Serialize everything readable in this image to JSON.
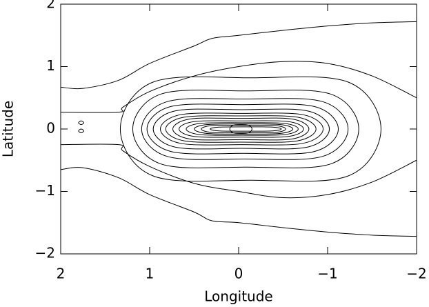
{
  "chart_data": {
    "type": "contour",
    "x_label": "Longitude",
    "y_label": "Latitude",
    "xlim": [
      2,
      -2
    ],
    "ylim": [
      -2,
      2
    ],
    "xticks": [
      2,
      1,
      0,
      {
        "value": -1,
        "label": "−1"
      },
      {
        "value": -2,
        "label": "−2"
      }
    ],
    "yticks": [
      {
        "value": -2,
        "label": "−2"
      },
      {
        "value": -1,
        "label": "−1"
      },
      0,
      1,
      2
    ],
    "color": "#000000",
    "open_contours": [
      {
        "x": [
          2,
          1.75,
          1.35,
          1,
          0.5,
          0.3,
          0,
          -0.5,
          -1,
          -1.5,
          -2
        ],
        "y": [
          0.67,
          0.65,
          0.78,
          1.05,
          1.33,
          1.45,
          1.5,
          1.58,
          1.65,
          1.7,
          1.72
        ]
      },
      {
        "x": [
          2,
          1.75,
          1.35,
          1,
          0.5,
          0.3,
          0,
          -0.5,
          -1,
          -1.5,
          -2
        ],
        "y": [
          -0.65,
          -0.62,
          -0.78,
          -1.05,
          -1.33,
          -1.47,
          -1.5,
          -1.58,
          -1.65,
          -1.7,
          -1.72
        ]
      },
      {
        "x": [
          2,
          1.35,
          1.3,
          1,
          0.5,
          0,
          -0.5,
          -1,
          -1.5,
          -2
        ],
        "y": [
          0.27,
          0.27,
          0.35,
          0.6,
          0.85,
          1.0,
          1.08,
          1.05,
          0.85,
          0.5
        ]
      },
      {
        "x": [
          2,
          1.35,
          1.3,
          1,
          0.5,
          0,
          -0.5,
          -1,
          -1.5,
          -2
        ],
        "y": [
          -0.25,
          -0.25,
          -0.35,
          -0.6,
          -0.87,
          -1.0,
          -1.1,
          -1.05,
          -0.85,
          -0.5
        ]
      }
    ],
    "closed_contours": [
      {
        "x": [
          1.33,
          0.964,
          -0.135,
          -1.234,
          -1.6,
          -1.234,
          -0.135,
          0.964
        ],
        "y": [
          0,
          0.75,
          0.82,
          0.75,
          0,
          -0.75,
          -0.82,
          -0.75
        ]
      },
      {
        "x": [
          1.19,
          0.873,
          -0.08,
          -1.033,
          -1.35,
          -1.033,
          -0.08,
          0.873
        ],
        "y": [
          0,
          0.56,
          0.61,
          0.56,
          0,
          -0.56,
          -0.61,
          -0.56
        ]
      },
      {
        "x": [
          1.09,
          0.8,
          -0.07,
          -0.94,
          -1.23,
          -0.94,
          -0.07,
          0.8
        ],
        "y": [
          0,
          0.44,
          0.48,
          0.44,
          0,
          -0.44,
          -0.48,
          -0.44
        ]
      },
      {
        "x": [
          1.03,
          0.761,
          -0.045,
          -0.851,
          -1.12,
          -0.851,
          -0.045,
          0.761
        ],
        "y": [
          0,
          0.36,
          0.39,
          0.36,
          0,
          -0.36,
          -0.39,
          -0.36
        ]
      },
      {
        "x": [
          0.96,
          0.713,
          -0.03,
          -0.773,
          -1.02,
          -0.773,
          -0.03,
          0.713
        ],
        "y": [
          0,
          0.29,
          0.31,
          0.29,
          0,
          -0.29,
          -0.31,
          -0.29
        ]
      },
      {
        "x": [
          0.88,
          0.651,
          -0.035,
          -0.721,
          -0.95,
          -0.721,
          -0.035,
          0.651
        ],
        "y": [
          0,
          0.23,
          0.25,
          0.23,
          0,
          -0.23,
          -0.25,
          -0.23
        ]
      },
      {
        "x": [
          0.82,
          0.609,
          -0.025,
          -0.659,
          -0.87,
          -0.659,
          -0.025,
          0.609
        ],
        "y": [
          0,
          0.19,
          0.21,
          0.19,
          0,
          -0.19,
          -0.21,
          -0.19
        ]
      },
      {
        "x": [
          0.74,
          0.549,
          -0.025,
          -0.599,
          -0.79,
          -0.599,
          -0.025,
          0.549
        ],
        "y": [
          0,
          0.16,
          0.17,
          0.16,
          0,
          -0.16,
          -0.17,
          -0.16
        ]
      },
      {
        "x": [
          0.67,
          0.495,
          -0.03,
          -0.555,
          -0.73,
          -0.555,
          -0.03,
          0.495
        ],
        "y": [
          0,
          0.12,
          0.13,
          0.12,
          0,
          -0.12,
          -0.13,
          -0.12
        ]
      },
      {
        "x": [
          0.59,
          0.433,
          -0.04,
          -0.513,
          -0.67,
          -0.513,
          -0.04,
          0.433
        ],
        "y": [
          0,
          0.09,
          0.1,
          0.09,
          0,
          -0.09,
          -0.1,
          -0.09
        ]
      },
      {
        "x": [
          0.5,
          0.361,
          -0.055,
          -0.471,
          -0.61,
          -0.471,
          -0.055,
          0.361
        ],
        "y": [
          0,
          0.07,
          0.08,
          0.07,
          0,
          -0.07,
          -0.08,
          -0.07
        ]
      },
      {
        "x": [
          0.42,
          0.301,
          -0.055,
          -0.411,
          -0.53,
          -0.411,
          -0.055,
          0.301
        ],
        "y": [
          0,
          0.055,
          0.06,
          0.055,
          0,
          -0.055,
          -0.06,
          -0.055
        ]
      },
      {
        "x": [
          0.32,
          0.22,
          -0.08,
          -0.38,
          -0.48,
          -0.38,
          -0.08,
          0.22
        ],
        "y": [
          0,
          0.03,
          0.035,
          0.03,
          0,
          -0.03,
          -0.035,
          -0.03
        ]
      },
      {
        "x": [
          0.1,
          0.069,
          -0.025,
          -0.119,
          -0.15,
          -0.119,
          -0.025,
          0.069
        ],
        "y": [
          0,
          0.055,
          0.07,
          0.055,
          0,
          -0.055,
          -0.07,
          -0.055
        ]
      },
      {
        "x": [
          1.8,
          1.77,
          1.74,
          1.77
        ],
        "y": [
          0.1,
          0.07,
          0.1,
          0.13
        ]
      },
      {
        "x": [
          1.8,
          1.77,
          1.74,
          1.77
        ],
        "y": [
          -0.03,
          -0.06,
          -0.03,
          0
        ]
      }
    ]
  }
}
